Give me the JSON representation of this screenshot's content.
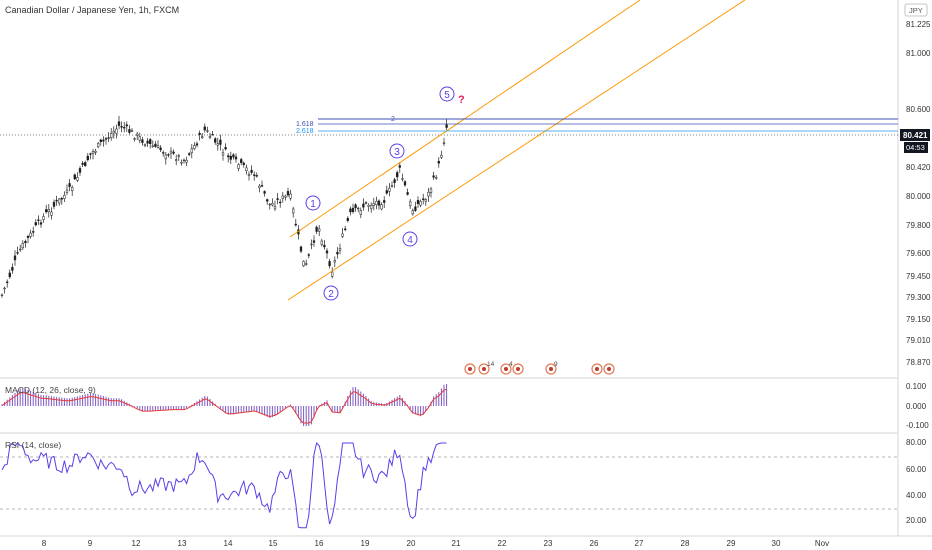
{
  "chart_title": "Canadian Dollar / Japanese Yen, 1h, FXCM",
  "currency_tag": "JPY",
  "price_axis": [
    "81.225",
    "81.000",
    "80.600",
    "80.420",
    "80.000",
    "79.800",
    "79.600",
    "79.450",
    "79.300",
    "79.150",
    "79.010",
    "78.870"
  ],
  "last_price": "80.421",
  "countdown": "04:53",
  "time_axis": [
    "8",
    "9",
    "12",
    "13",
    "14",
    "15",
    "16",
    "19",
    "20",
    "21",
    "22",
    "23",
    "26",
    "27",
    "28",
    "29",
    "30",
    "Nov"
  ],
  "fib_labels": {
    "l1618": "1.618",
    "l2618": "2.618",
    "l2": "2"
  },
  "wave_labels": [
    "1",
    "2",
    "3",
    "4",
    "5"
  ],
  "wave_question": "?",
  "event_counts": [
    "14",
    "4",
    "9"
  ],
  "macd_label": "MACD (12, 26, close, 9)",
  "macd_axis": [
    "0.100",
    "0.000",
    "-0.100"
  ],
  "rsi_label": "RSI (14, close)",
  "rsi_axis": [
    "80.00",
    "60.00",
    "40.00",
    "20.00"
  ],
  "colors": {
    "candle": "#1c1c1c",
    "channel": "#ff9800",
    "wave": "#5c3ee8",
    "fib": "#3f51b5",
    "macd_hist": "#7e57c2",
    "macd_signal": "#e53935",
    "rsi": "#5c3ee8",
    "price_tag": "#131722"
  }
}
